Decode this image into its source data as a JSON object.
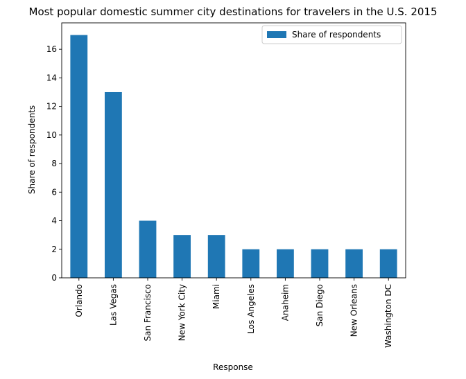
{
  "chart_data": {
    "type": "bar",
    "title": "Most popular domestic summer city destinations for travelers in the U.S. 2015",
    "xlabel": "Response",
    "ylabel": "Share of respondents",
    "categories": [
      "Orlando",
      "Las Vegas",
      "San Francisco",
      "New York City",
      "Miami",
      "Los Angeles",
      "Anaheim",
      "San Diego",
      "New Orleans",
      "Washington DC"
    ],
    "series": [
      {
        "name": "Share of respondents",
        "values": [
          17,
          13,
          4,
          3,
          3,
          2,
          2,
          2,
          2,
          2
        ],
        "color": "#1f77b4"
      }
    ],
    "yticks": [
      "0",
      "2",
      "4",
      "6",
      "8",
      "10",
      "12",
      "14",
      "16"
    ],
    "ylim": [
      0,
      17.85
    ],
    "grid": false,
    "legend": "top-right"
  }
}
